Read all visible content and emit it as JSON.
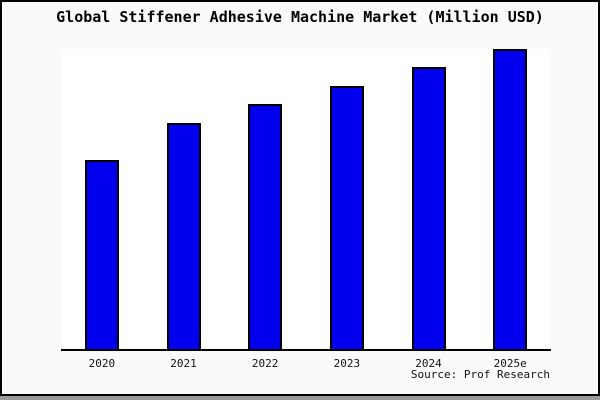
{
  "title": "Global Stiffener Adhesive Machine Market (Million USD)",
  "source": "Source: Prof Research",
  "colors": {
    "bar_fill": "#0000EE",
    "bar_border": "#000000",
    "page_background": "#FAFAFA",
    "plot_background": "#FFFFFF",
    "frame_border": "#000000",
    "shadow": "#9A9A9A"
  },
  "chart_data": {
    "type": "bar",
    "title": "Global Stiffener Adhesive Machine Market (Million USD)",
    "categories": [
      "2020",
      "2021",
      "2022",
      "2023",
      "2024",
      "2025e"
    ],
    "values": [
      63,
      75.3,
      81.7,
      87.7,
      94,
      100
    ],
    "value_scale": "relative bar heights, percent of tallest bar (no numeric y-axis shown)",
    "xlabel": "",
    "ylabel": "",
    "ylim": [
      0,
      100
    ],
    "grid": false,
    "legend": false,
    "y_axis_ticks": false,
    "annotation": "Source: Prof Research"
  }
}
